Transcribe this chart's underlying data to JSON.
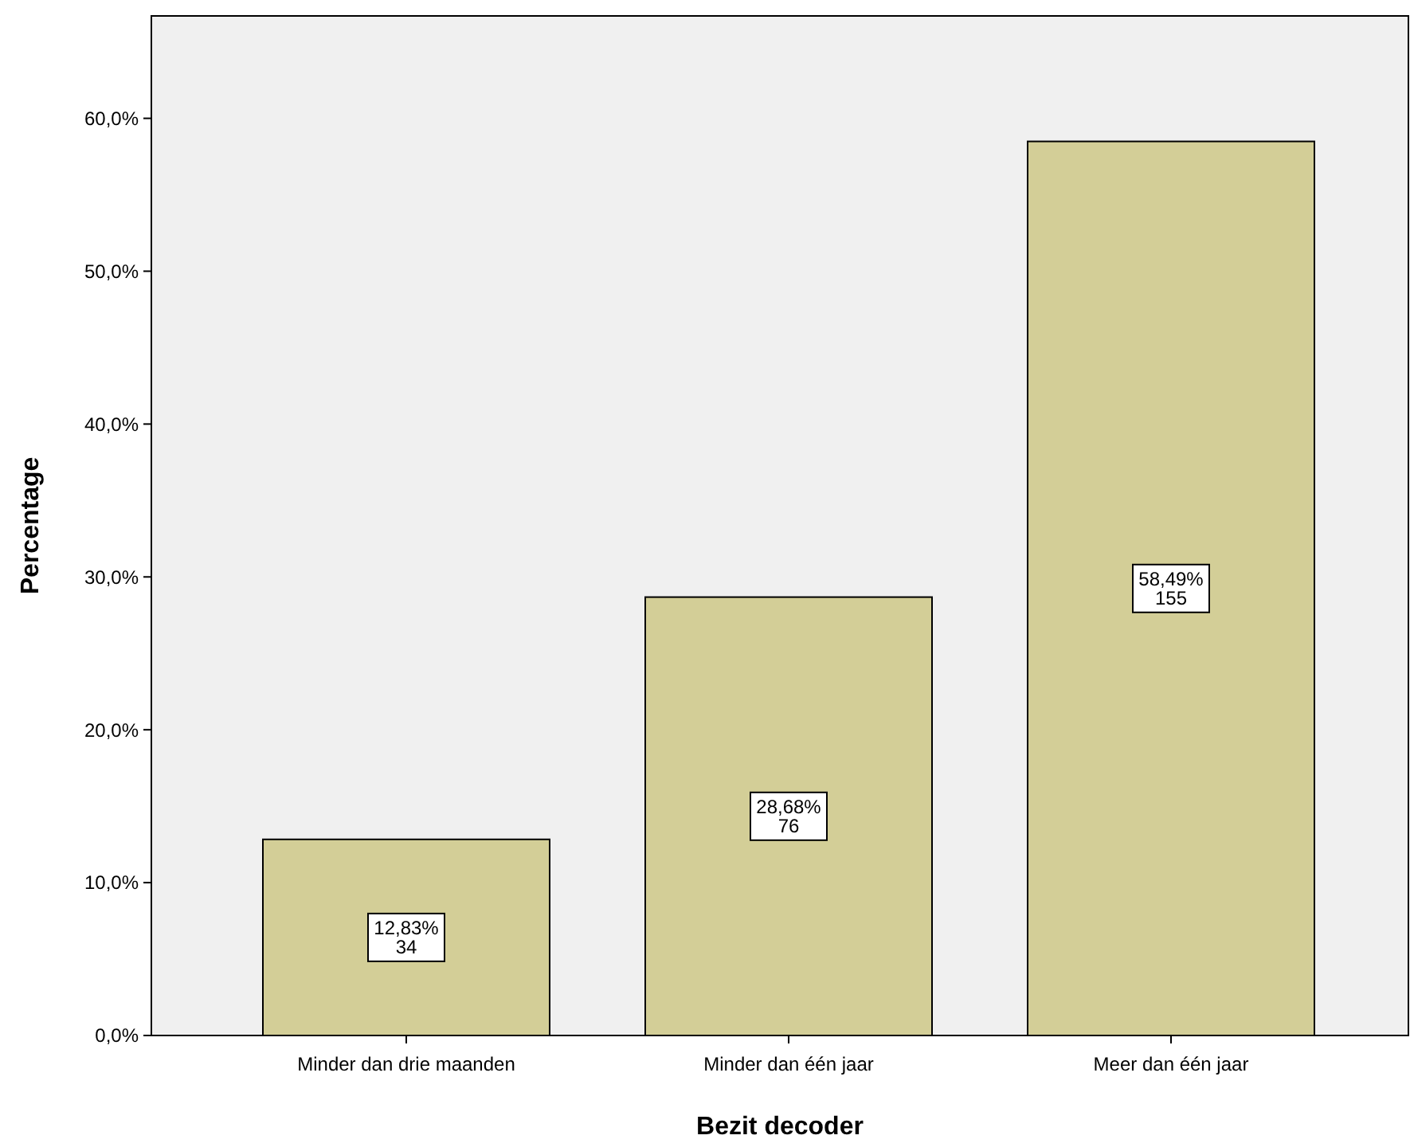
{
  "chart_data": {
    "type": "bar",
    "xlabel": "Bezit decoder",
    "ylabel": "Percentage",
    "categories": [
      "Minder dan drie maanden",
      "Minder dan één jaar",
      "Meer dan één jaar"
    ],
    "values": [
      12.83,
      28.68,
      58.49
    ],
    "value_labels": [
      "12,83%\n34",
      "28,68%\n76",
      "58,49%\n155"
    ],
    "color": "#d3ce97",
    "ylim": [
      0,
      66.7
    ],
    "yticks": [
      {
        "value": 0,
        "label": "0,0%"
      },
      {
        "value": 10,
        "label": "10,0%"
      },
      {
        "value": 20,
        "label": "20,0%"
      },
      {
        "value": 30,
        "label": "30,0%"
      },
      {
        "value": 40,
        "label": "40,0%"
      },
      {
        "value": 50,
        "label": "50,0%"
      },
      {
        "value": 60,
        "label": "60,0%"
      }
    ],
    "grid": false
  }
}
